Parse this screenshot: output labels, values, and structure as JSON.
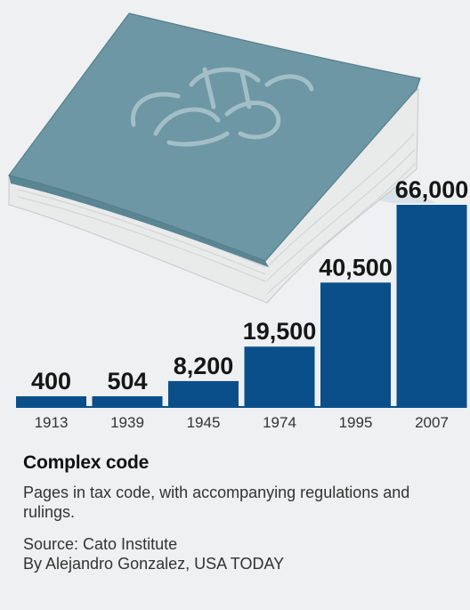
{
  "colors": {
    "bar": "#0b4f8a",
    "book_cover": "#6d97a4",
    "book_pages": "#e9eaea"
  },
  "book_icon": "book-icon",
  "chart_data": {
    "type": "bar",
    "categories": [
      "1913",
      "1939",
      "1945",
      "1974",
      "1995",
      "2007"
    ],
    "values": [
      400,
      504,
      8200,
      19500,
      40500,
      66000
    ],
    "value_labels": [
      "400",
      "504",
      "8,200",
      "19,500",
      "40,500",
      "66,000"
    ],
    "title": "Complex code",
    "subtitle": "Pages in tax code, with accompanying regulations and rulings.",
    "xlabel": "",
    "ylabel": "",
    "ylim": [
      0,
      66000
    ],
    "grid": false
  },
  "caption": {
    "source": "Source: Cato Institute",
    "byline": "By Alejandro Gonzalez, USA TODAY"
  }
}
